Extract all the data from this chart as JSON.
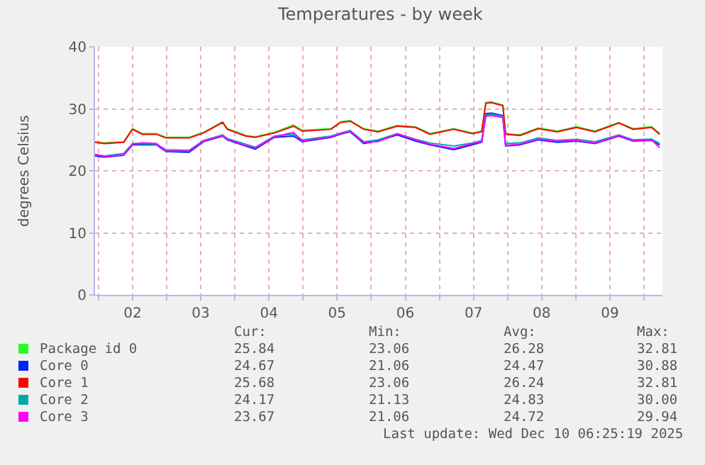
{
  "chart_data": {
    "type": "line",
    "title": "Temperatures - by week",
    "ylabel": "degrees Celsius",
    "xlim": [
      1.95,
      10.27
    ],
    "ylim": [
      0,
      40
    ],
    "yticks": [
      0,
      10,
      20,
      30,
      40
    ],
    "xticks": [
      {
        "value": 2,
        "label": null
      },
      {
        "value": 2.5,
        "label": "02"
      },
      {
        "value": 3,
        "label": null
      },
      {
        "value": 3.5,
        "label": "03"
      },
      {
        "value": 4,
        "label": null
      },
      {
        "value": 4.5,
        "label": "04"
      },
      {
        "value": 5,
        "label": null
      },
      {
        "value": 5.5,
        "label": "05"
      },
      {
        "value": 6,
        "label": null
      },
      {
        "value": 6.5,
        "label": "06"
      },
      {
        "value": 7,
        "label": null
      },
      {
        "value": 7.5,
        "label": "07"
      },
      {
        "value": 8,
        "label": null
      },
      {
        "value": 8.5,
        "label": "08"
      },
      {
        "value": 9,
        "label": null
      },
      {
        "value": 9.5,
        "label": "09"
      },
      {
        "value": 10,
        "label": null
      }
    ],
    "grid": true,
    "legend": "bottom left",
    "marker": "none",
    "line_style": "solid",
    "x": [
      1.95,
      2.09,
      2.37,
      2.5,
      2.64,
      2.85,
      2.99,
      3.33,
      3.54,
      3.82,
      3.89,
      4.16,
      4.3,
      4.58,
      4.86,
      4.99,
      5.41,
      5.55,
      5.69,
      5.89,
      6.1,
      6.38,
      6.65,
      6.86,
      7.21,
      7.48,
      7.62,
      7.68,
      7.76,
      7.93,
      7.97,
      8.18,
      8.45,
      8.73,
      9.01,
      9.28,
      9.63,
      9.84,
      10.11,
      10.23
    ],
    "series": [
      {
        "name": "Package id 0",
        "color": "#22ff22",
        "values": [
          24.7,
          24.5,
          24.7,
          26.8,
          26.0,
          26.0,
          25.4,
          25.4,
          26.2,
          27.9,
          26.8,
          25.7,
          25.5,
          26.2,
          27.4,
          26.5,
          26.8,
          27.9,
          28.1,
          26.8,
          26.4,
          27.3,
          27.1,
          26.0,
          26.8,
          26.1,
          26.4,
          31.0,
          31.1,
          30.6,
          26.0,
          25.8,
          26.9,
          26.4,
          27.1,
          26.4,
          27.8,
          26.8,
          27.1,
          26.0
        ]
      },
      {
        "name": "Core 0",
        "color": "#0022ff",
        "values": [
          22.4,
          22.2,
          22.5,
          24.2,
          24.2,
          24.2,
          23.1,
          23.0,
          24.7,
          25.6,
          25.0,
          24.0,
          23.5,
          25.4,
          25.6,
          24.7,
          25.4,
          25.9,
          26.3,
          24.4,
          24.8,
          25.8,
          24.8,
          24.2,
          23.4,
          24.2,
          24.6,
          29.2,
          29.3,
          28.9,
          24.0,
          24.2,
          25.0,
          24.6,
          24.8,
          24.4,
          25.6,
          24.8,
          24.9,
          24.2
        ]
      },
      {
        "name": "Core 1",
        "color": "#ff0000",
        "values": [
          24.6,
          24.4,
          24.6,
          26.7,
          25.9,
          25.9,
          25.3,
          25.3,
          26.1,
          27.8,
          26.7,
          25.6,
          25.4,
          26.1,
          27.2,
          26.4,
          26.7,
          27.8,
          28.0,
          26.7,
          26.3,
          27.2,
          27.0,
          25.9,
          26.7,
          26.0,
          26.3,
          30.9,
          31.0,
          30.5,
          25.9,
          25.7,
          26.8,
          26.3,
          27.0,
          26.3,
          27.7,
          26.7,
          27.0,
          25.9
        ]
      },
      {
        "name": "Core 2",
        "color": "#00aaaa",
        "values": [
          22.6,
          22.4,
          22.8,
          24.4,
          24.4,
          24.3,
          23.4,
          23.3,
          24.9,
          25.8,
          25.2,
          24.3,
          23.8,
          25.6,
          25.9,
          25.0,
          25.6,
          26.1,
          26.5,
          24.7,
          25.0,
          26.0,
          25.1,
          24.5,
          24.0,
          24.5,
          24.9,
          29.0,
          29.1,
          28.8,
          24.4,
          24.5,
          25.3,
          24.9,
          25.1,
          24.7,
          25.8,
          25.0,
          25.1,
          24.4
        ]
      },
      {
        "name": "Core 3",
        "color": "#ff00ff",
        "values": [
          22.7,
          22.3,
          22.6,
          24.3,
          24.5,
          24.4,
          23.2,
          23.2,
          24.8,
          25.7,
          25.1,
          24.1,
          23.7,
          25.5,
          26.2,
          24.8,
          25.5,
          26.0,
          26.4,
          24.6,
          24.7,
          26.0,
          25.0,
          24.3,
          23.6,
          24.4,
          24.7,
          28.8,
          28.9,
          28.6,
          24.1,
          24.3,
          25.1,
          24.8,
          24.9,
          24.5,
          25.7,
          24.9,
          25.0,
          23.7
        ]
      }
    ],
    "annotations": [
      "Cur:",
      "Min:",
      "Avg:",
      "Max:",
      "25.84",
      "23.06",
      "26.28",
      "32.81",
      "24.67",
      "21.06",
      "24.47",
      "30.88",
      "25.68",
      "23.06",
      "26.24",
      "32.81",
      "24.17",
      "21.13",
      "24.83",
      "30.00",
      "23.67",
      "21.06",
      "24.72",
      "29.94",
      "Last update: Wed Dec 10 06:25:19 2025"
    ]
  }
}
